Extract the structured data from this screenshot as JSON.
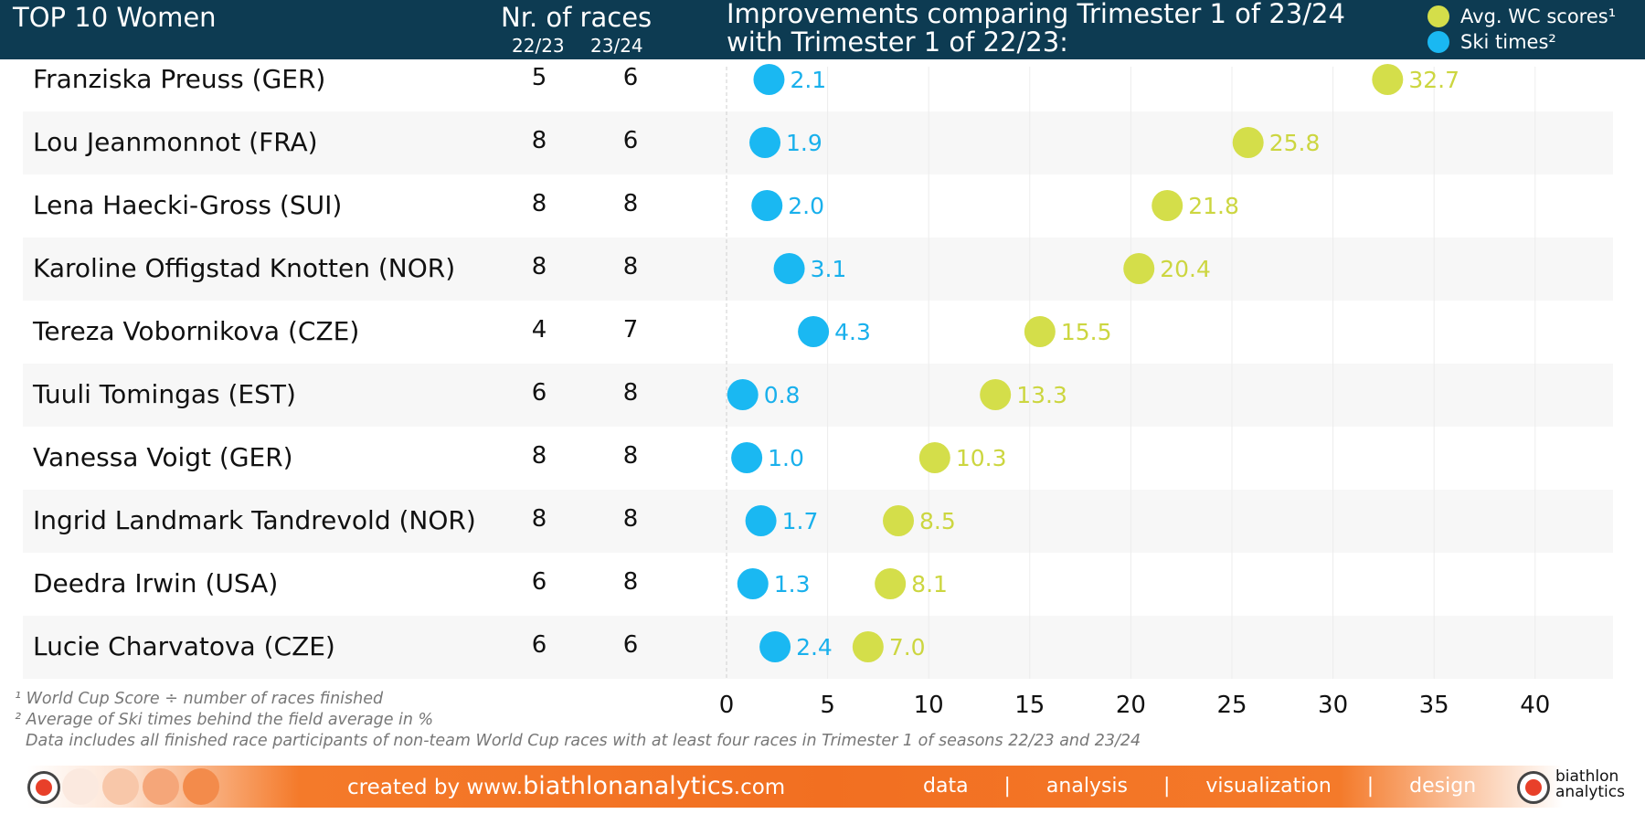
{
  "header": {
    "title": "TOP 10 Women",
    "races_title": "Nr. of races",
    "season_a": "22/23",
    "season_b": "23/24",
    "headline_line1": "Improvements comparing Trimester 1 of 23/24",
    "headline_line2": "with Trimester 1 of 22/23:"
  },
  "legend": [
    {
      "label": "Avg. WC scores¹",
      "color": "#d4de4a"
    },
    {
      "label": "Ski times²",
      "color": "#1ab8f2"
    }
  ],
  "chart_data": {
    "type": "scatter",
    "title": "Improvements comparing Trimester 1 of 23/24 with Trimester 1 of 22/23:",
    "categories": [
      "Franziska Preuss (GER)",
      "Lou Jeanmonnot (FRA)",
      "Lena Haecki-Gross (SUI)",
      "Karoline Offigstad Knotten (NOR)",
      "Tereza Vobornikova (CZE)",
      "Tuuli Tomingas (EST)",
      "Vanessa Voigt (GER)",
      "Ingrid Landmark Tandrevold (NOR)",
      "Deedra Irwin (USA)",
      "Lucie Charvatova (CZE)"
    ],
    "races_22_23": [
      5,
      8,
      8,
      8,
      4,
      6,
      8,
      8,
      6,
      6
    ],
    "races_23_24": [
      6,
      6,
      8,
      8,
      7,
      8,
      8,
      8,
      8,
      6
    ],
    "series": [
      {
        "name": "Avg. WC scores¹",
        "values": [
          32.7,
          25.8,
          21.8,
          20.4,
          15.5,
          13.3,
          10.3,
          8.5,
          8.1,
          7.0
        ],
        "value_labels": [
          "32.7",
          "25.8",
          "21.8",
          "20.4",
          "15.5",
          "13.3",
          "10.3",
          "8.5",
          "8.1",
          "7.0"
        ]
      },
      {
        "name": "Ski times²",
        "values": [
          2.1,
          1.9,
          2.0,
          3.1,
          4.3,
          0.8,
          1.0,
          1.7,
          1.3,
          2.4
        ],
        "value_labels": [
          "2.1",
          "1.9",
          "2.0",
          "3.1",
          "4.3",
          "0.8",
          "1.0",
          "1.7",
          "1.3",
          "2.4"
        ]
      }
    ],
    "xlim": [
      0,
      44
    ],
    "x_ticks": [
      "0",
      "5",
      "10",
      "15",
      "20",
      "25",
      "30",
      "35",
      "40"
    ],
    "x_tick_values": [
      0,
      5,
      10,
      15,
      20,
      25,
      30,
      35,
      40
    ],
    "grid": true
  },
  "footnotes": {
    "note1": "¹ World Cup Score ÷ number of races finished",
    "note2": "² Average of Ski times behind the field average in %",
    "note3": "Data includes all finished race participants of non-team World Cup races with at least four races in Trimester 1 of seasons 22/23 and 23/24"
  },
  "footer": {
    "credit_prefix": "created by www.",
    "credit_domain": "biathlonanalytics",
    "credit_suffix": ".com",
    "services": "data   |   analysis   |   visualization   |   design",
    "brand_line1": "biathlon",
    "brand_line2": "analytics"
  }
}
